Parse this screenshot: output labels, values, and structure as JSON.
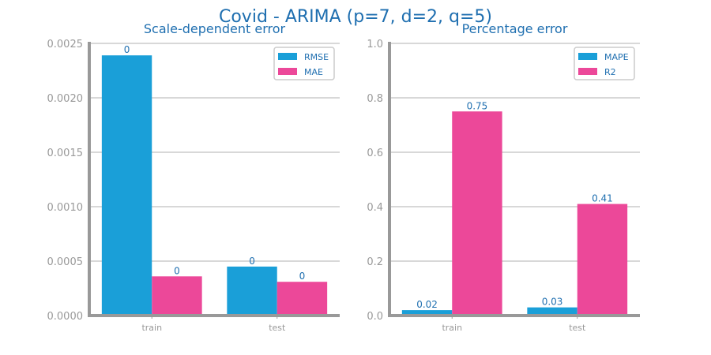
{
  "suptitle": "Covid - ARIMA (p=7, d=2, q=5)",
  "colors": {
    "series_a": "#1a9fd8",
    "series_b": "#ec4899",
    "title": "#1f6fb0",
    "axis": "#999999",
    "grid": "#cccccc",
    "tick_text": "#999999",
    "value_text": "#1f6fb0"
  },
  "chart_data": [
    {
      "type": "bar",
      "title": "Scale-dependent error",
      "categories": [
        "train",
        "test"
      ],
      "series": [
        {
          "name": "RMSE",
          "values": [
            0.00239,
            0.00045
          ]
        },
        {
          "name": "MAE",
          "values": [
            0.00036,
            0.00031
          ]
        }
      ],
      "value_labels": [
        [
          "0",
          "0"
        ],
        [
          "0",
          "0"
        ]
      ],
      "ylim": [
        0,
        0.0025
      ],
      "yticks": [
        0,
        0.0005,
        0.001,
        0.0015,
        0.002,
        0.0025
      ],
      "ytick_labels": [
        "0.0000",
        "0.0005",
        "0.0010",
        "0.0015",
        "0.0020",
        "0.0025"
      ],
      "xlabel": "",
      "ylabel": "",
      "grid": true,
      "legend_position": "top-right"
    },
    {
      "type": "bar",
      "title": "Percentage error",
      "categories": [
        "train",
        "test"
      ],
      "series": [
        {
          "name": "MAPE",
          "values": [
            0.02,
            0.03
          ]
        },
        {
          "name": "R2",
          "values": [
            0.75,
            0.41
          ]
        }
      ],
      "value_labels": [
        [
          "0.02",
          "0.03"
        ],
        [
          "0.75",
          "0.41"
        ]
      ],
      "ylim": [
        0,
        1.0
      ],
      "yticks": [
        0,
        0.2,
        0.4,
        0.6,
        0.8,
        1.0
      ],
      "ytick_labels": [
        "0.0",
        "0.2",
        "0.4",
        "0.6",
        "0.8",
        "1.0"
      ],
      "xlabel": "",
      "ylabel": "",
      "grid": true,
      "legend_position": "top-right"
    }
  ]
}
